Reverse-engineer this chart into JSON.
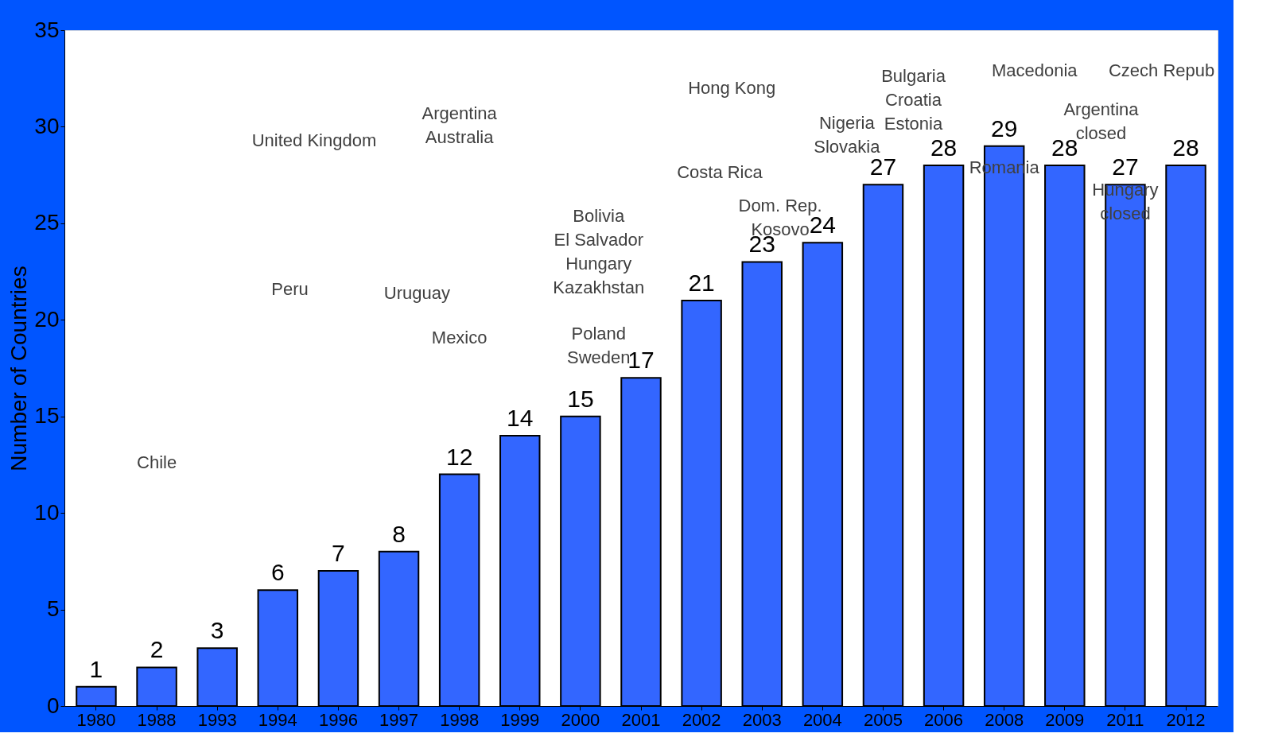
{
  "chart_data": {
    "type": "bar",
    "ylabel": "Number of Countries",
    "categories": [
      "1980",
      "1988",
      "1993",
      "1994",
      "1996",
      "1997",
      "1998",
      "1999",
      "2000",
      "2001",
      "2002",
      "2003",
      "2004",
      "2005",
      "2006",
      "2008",
      "2009",
      "2011",
      "2012"
    ],
    "values": [
      1,
      2,
      3,
      6,
      7,
      8,
      12,
      14,
      15,
      17,
      21,
      23,
      24,
      27,
      28,
      29,
      28,
      27,
      28
    ],
    "color": "#3366ff",
    "ylim": [
      0,
      35
    ],
    "yticks": [
      0,
      5,
      10,
      15,
      20,
      25,
      30,
      35
    ],
    "grid": false,
    "data_labels": true,
    "annotations": [
      "Chile",
      "United Kingdom",
      "Peru",
      "Argentina\nAustralia",
      "Uruguay",
      "Mexico",
      "Bolivia\nEl Salvador\nHungary\nKazakhstan",
      "Poland\nSweden",
      "Hong Kong",
      "Costa Rica",
      "Dom. Rep.\nKosovo",
      "Bulgaria\nCroatia\nEstonia",
      "Macedonia",
      "Nigeria\nSlovakia",
      "Romania",
      "Argentina\nclosed",
      "Hungary\nclosed",
      "Czech Repub"
    ]
  }
}
